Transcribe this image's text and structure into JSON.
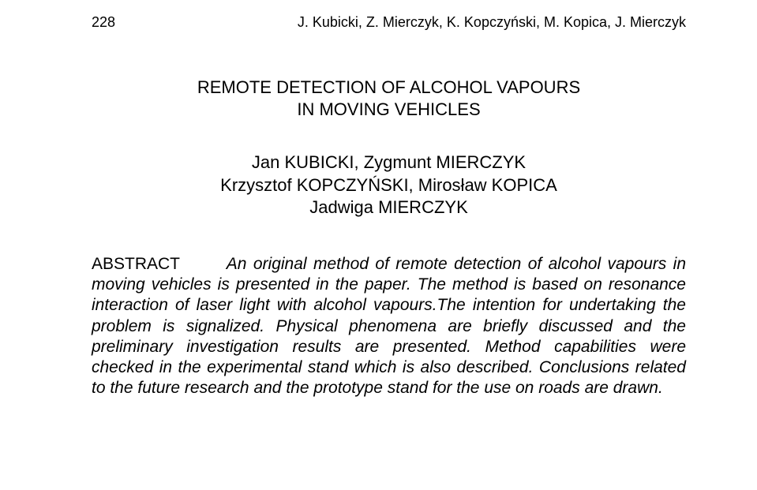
{
  "header": {
    "page_number": "228",
    "running_head": "J. Kubicki, Z. Mierczyk, K. Kopczyński, M. Kopica, J. Mierczyk"
  },
  "title": {
    "line1": "REMOTE DETECTION OF ALCOHOL VAPOURS",
    "line2": "IN MOVING VEHICLES"
  },
  "authors": {
    "line1": "Jan KUBICKI, Zygmunt MIERCZYK",
    "line2": "Krzysztof KOPCZYŃSKI, Mirosław KOPICA",
    "line3": "Jadwiga MIERCZYK"
  },
  "abstract": {
    "label": "ABSTRACT",
    "spacer": "       ",
    "body": "An original method of remote detection of alcohol vapours in moving vehicles is presented in the paper. The method is based on resonance interaction of laser light with alcohol vapours.The intention for undertaking the problem is signalized. Physical phenomena are briefly discussed and the preliminary investigation results are presented. Method capabilities were checked in the experimental stand which is also described. Conclusions related to the future research and the prototype stand for the use on roads are drawn."
  },
  "style": {
    "background_color": "#ffffff",
    "text_color": "#000000",
    "header_fontsize": 18,
    "title_fontsize": 22,
    "authors_fontsize": 22,
    "abstract_fontsize": 21
  }
}
